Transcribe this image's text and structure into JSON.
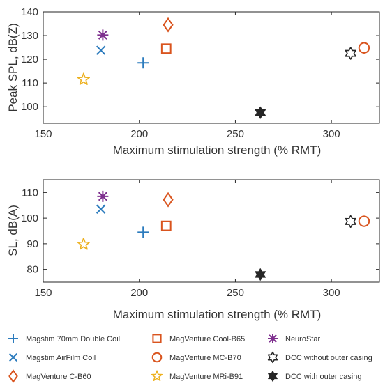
{
  "chart_data": [
    {
      "type": "scatter",
      "title": "",
      "xlabel": "Maximum stimulation strength (% RMT)",
      "ylabel": "Peak SPL, dB(Z)",
      "xlim": [
        150,
        325
      ],
      "ylim": [
        93,
        140
      ],
      "xticks": [
        "150",
        "200",
        "250",
        "300"
      ],
      "yticks": [
        "100",
        "110",
        "120",
        "130",
        "140"
      ],
      "series": [
        {
          "name": "Magstim 70mm Double Coil",
          "marker": "plus",
          "color": "#2b7bbd",
          "points": [
            {
              "x": 202,
              "y": 118.5
            }
          ]
        },
        {
          "name": "Magstim AirFilm Coil",
          "marker": "x",
          "color": "#2b7bbd",
          "points": [
            {
              "x": 180,
              "y": 123.8
            }
          ]
        },
        {
          "name": "MagVenture C-B60",
          "marker": "diamond",
          "color": "#d9541e",
          "points": [
            {
              "x": 215,
              "y": 134.5
            }
          ]
        },
        {
          "name": "MagVenture Cool-B65",
          "marker": "square",
          "color": "#d9541e",
          "points": [
            {
              "x": 214,
              "y": 124.5
            }
          ]
        },
        {
          "name": "MagVenture MC-B70",
          "marker": "circle",
          "color": "#d9541e",
          "points": [
            {
              "x": 317,
              "y": 124.8
            }
          ]
        },
        {
          "name": "MagVenture MRi-B91",
          "marker": "star5",
          "color": "#edb120",
          "points": [
            {
              "x": 171,
              "y": 111.5
            }
          ]
        },
        {
          "name": "NeuroStar",
          "marker": "asterisk",
          "color": "#7e2f8e",
          "points": [
            {
              "x": 181,
              "y": 130.2
            }
          ]
        },
        {
          "name": "DCC without outer casing",
          "marker": "hexagram-open",
          "color": "#262626",
          "points": [
            {
              "x": 310,
              "y": 122.5
            }
          ]
        },
        {
          "name": "DCC with outer casing",
          "marker": "hexagram-filled",
          "color": "#262626",
          "points": [
            {
              "x": 263,
              "y": 97.5
            }
          ]
        }
      ]
    },
    {
      "type": "scatter",
      "title": "",
      "xlabel": "Maximum stimulation strength (% RMT)",
      "ylabel": "SL, dB(A)",
      "xlim": [
        150,
        325
      ],
      "ylim": [
        75,
        115
      ],
      "xticks": [
        "150",
        "200",
        "250",
        "300"
      ],
      "yticks": [
        "80",
        "90",
        "100",
        "110"
      ],
      "series": [
        {
          "name": "Magstim 70mm Double Coil",
          "marker": "plus",
          "color": "#2b7bbd",
          "points": [
            {
              "x": 202,
              "y": 94.5
            }
          ]
        },
        {
          "name": "Magstim AirFilm Coil",
          "marker": "x",
          "color": "#2b7bbd",
          "points": [
            {
              "x": 180,
              "y": 103.5
            }
          ]
        },
        {
          "name": "MagVenture C-B60",
          "marker": "diamond",
          "color": "#d9541e",
          "points": [
            {
              "x": 215,
              "y": 107.2
            }
          ]
        },
        {
          "name": "MagVenture Cool-B65",
          "marker": "square",
          "color": "#d9541e",
          "points": [
            {
              "x": 214,
              "y": 97.0
            }
          ]
        },
        {
          "name": "MagVenture MC-B70",
          "marker": "circle",
          "color": "#d9541e",
          "points": [
            {
              "x": 317,
              "y": 98.8
            }
          ]
        },
        {
          "name": "MagVenture MRi-B91",
          "marker": "star5",
          "color": "#edb120",
          "points": [
            {
              "x": 171,
              "y": 89.8
            }
          ]
        },
        {
          "name": "NeuroStar",
          "marker": "asterisk",
          "color": "#7e2f8e",
          "points": [
            {
              "x": 181,
              "y": 108.5
            }
          ]
        },
        {
          "name": "DCC without outer casing",
          "marker": "hexagram-open",
          "color": "#262626",
          "points": [
            {
              "x": 310,
              "y": 98.7
            }
          ]
        },
        {
          "name": "DCC with outer casing",
          "marker": "hexagram-filled",
          "color": "#262626",
          "points": [
            {
              "x": 263,
              "y": 78.0
            }
          ]
        }
      ]
    }
  ],
  "legend": {
    "placement": "bottom",
    "columns": 3,
    "items": [
      {
        "label": "Magstim 70mm Double Coil",
        "marker": "plus",
        "color": "#2b7bbd"
      },
      {
        "label": "MagVenture Cool-B65",
        "marker": "square",
        "color": "#d9541e"
      },
      {
        "label": "NeuroStar",
        "marker": "asterisk",
        "color": "#7e2f8e"
      },
      {
        "label": "Magstim AirFilm Coil",
        "marker": "x",
        "color": "#2b7bbd"
      },
      {
        "label": "MagVenture MC-B70",
        "marker": "circle",
        "color": "#d9541e"
      },
      {
        "label": "DCC without outer casing",
        "marker": "hexagram-open",
        "color": "#262626"
      },
      {
        "label": "MagVenture C-B60",
        "marker": "diamond",
        "color": "#d9541e"
      },
      {
        "label": "MagVenture MRi-B91",
        "marker": "star5",
        "color": "#edb120"
      },
      {
        "label": "DCC with outer casing",
        "marker": "hexagram-filled",
        "color": "#262626"
      }
    ]
  }
}
